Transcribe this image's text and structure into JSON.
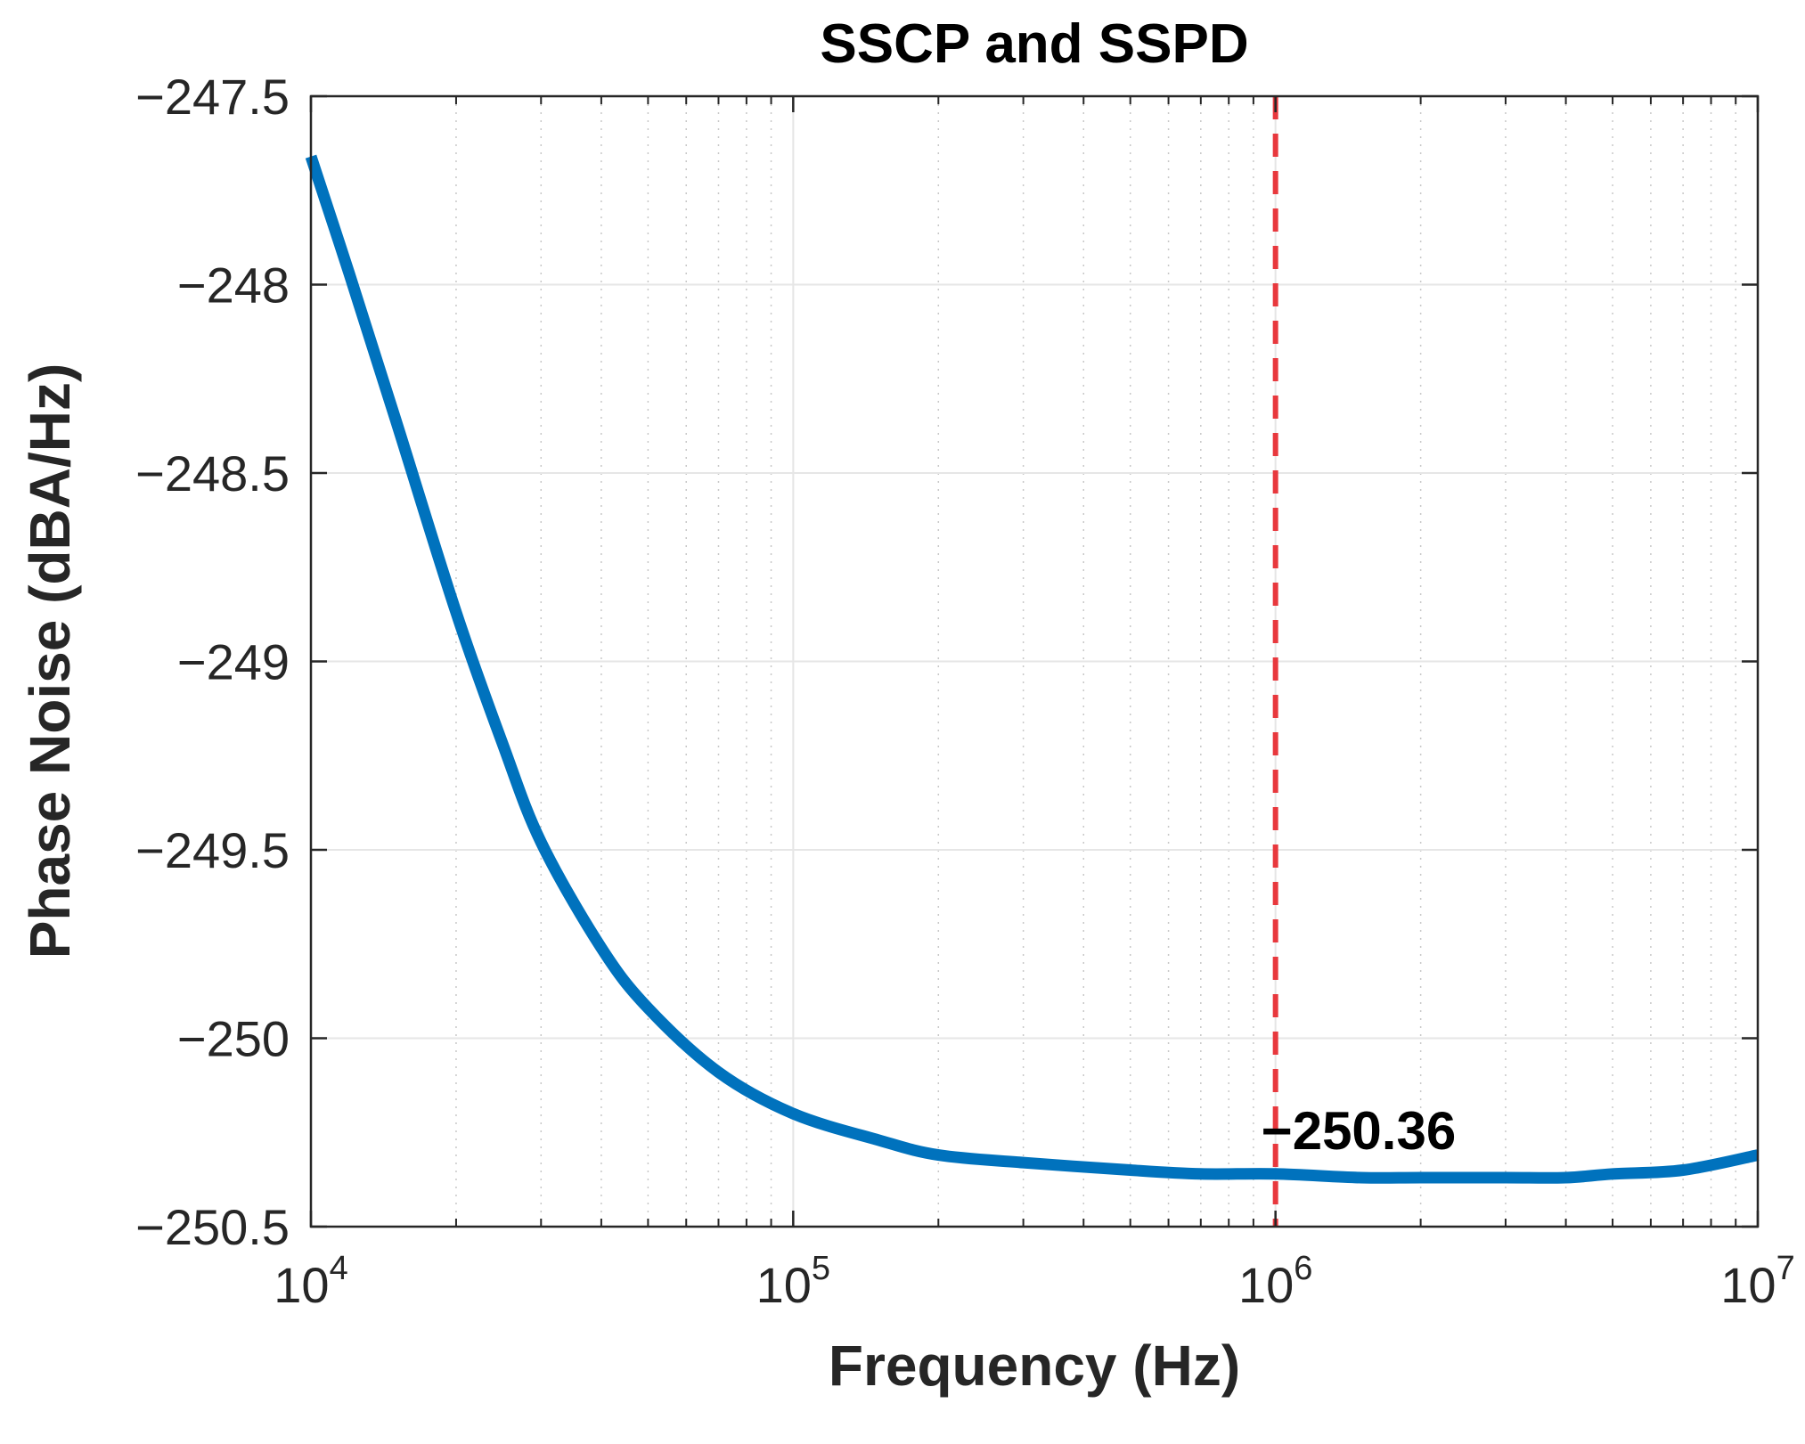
{
  "chart_data": {
    "type": "line",
    "title": "SSCP and SSPD",
    "xlabel": "Frequency (Hz)",
    "ylabel": "Phase Noise (dBA/Hz)",
    "xscale": "log",
    "xlim": [
      10000,
      10000000
    ],
    "ylim": [
      -250.5,
      -247.5
    ],
    "grid": true,
    "xticks": [
      {
        "value": 10000,
        "base": "10",
        "exp": "4"
      },
      {
        "value": 100000,
        "base": "10",
        "exp": "5"
      },
      {
        "value": 1000000,
        "base": "10",
        "exp": "6"
      },
      {
        "value": 10000000,
        "base": "10",
        "exp": "7"
      }
    ],
    "yticks": [
      {
        "value": -247.5,
        "label": "−247.5"
      },
      {
        "value": -248,
        "label": "−248"
      },
      {
        "value": -248.5,
        "label": "−248.5"
      },
      {
        "value": -249,
        "label": "−249"
      },
      {
        "value": -249.5,
        "label": "−249.5"
      },
      {
        "value": -250,
        "label": "−250"
      },
      {
        "value": -250.5,
        "label": "−250.5"
      }
    ],
    "series": [
      {
        "name": "Phase Noise",
        "color": "#0072BD",
        "x": [
          10000,
          12000,
          15000,
          20000,
          25000,
          30000,
          40000,
          50000,
          70000,
          100000,
          150000,
          200000,
          300000,
          500000,
          700000,
          1000000,
          1500000,
          2000000,
          3000000,
          4000000,
          5000000,
          7000000,
          10000000
        ],
        "y": [
          -247.66,
          -247.97,
          -248.36,
          -248.87,
          -249.22,
          -249.48,
          -249.76,
          -249.92,
          -250.09,
          -250.2,
          -250.27,
          -250.31,
          -250.33,
          -250.35,
          -250.36,
          -250.36,
          -250.37,
          -250.37,
          -250.37,
          -250.37,
          -250.36,
          -250.35,
          -250.31
        ]
      }
    ],
    "vline": {
      "x": 1000000,
      "color": "#E8383D",
      "style": "dashed"
    },
    "annotations": [
      {
        "text": "−250.36",
        "x": 1000000,
        "y": -250.36
      }
    ]
  }
}
